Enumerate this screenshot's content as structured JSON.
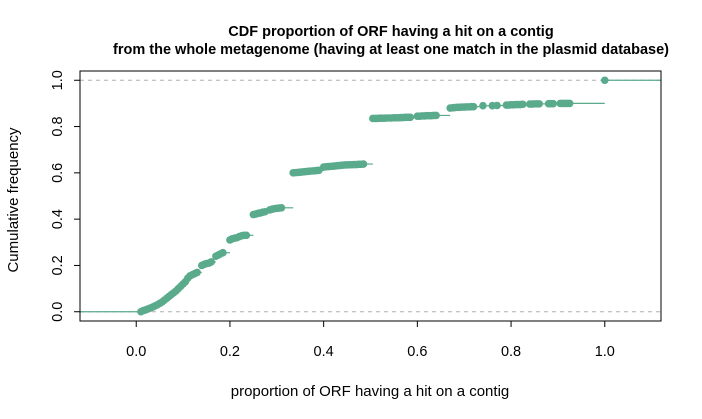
{
  "chart_data": {
    "type": "scatter",
    "title": [
      "CDF proportion of ORF having a hit on a contig",
      "from the whole metagenome (having at least one match in the plasmid database)"
    ],
    "xlabel": "proportion of ORF having a hit on a contig",
    "ylabel": "Cumulative frequency",
    "xlim": [
      -0.12,
      1.12
    ],
    "ylim": [
      -0.04,
      1.04
    ],
    "xticks": [
      "0.0",
      "0.2",
      "0.4",
      "0.6",
      "0.8",
      "1.0"
    ],
    "yticks": [
      "0.0",
      "0.2",
      "0.4",
      "0.6",
      "0.8",
      "1.0"
    ],
    "reference_lines": [
      0,
      1
    ],
    "grid": false,
    "color": "#5aaa8c",
    "points": [
      [
        0.01,
        0.0
      ],
      [
        0.015,
        0.005
      ],
      [
        0.02,
        0.008
      ],
      [
        0.025,
        0.012
      ],
      [
        0.03,
        0.016
      ],
      [
        0.035,
        0.02
      ],
      [
        0.04,
        0.025
      ],
      [
        0.045,
        0.03
      ],
      [
        0.05,
        0.036
      ],
      [
        0.055,
        0.042
      ],
      [
        0.06,
        0.05
      ],
      [
        0.065,
        0.058
      ],
      [
        0.07,
        0.066
      ],
      [
        0.075,
        0.074
      ],
      [
        0.08,
        0.082
      ],
      [
        0.085,
        0.09
      ],
      [
        0.09,
        0.1
      ],
      [
        0.095,
        0.11
      ],
      [
        0.1,
        0.12
      ],
      [
        0.105,
        0.13
      ],
      [
        0.11,
        0.145
      ],
      [
        0.115,
        0.155
      ],
      [
        0.12,
        0.16
      ],
      [
        0.125,
        0.165
      ],
      [
        0.13,
        0.17
      ],
      [
        0.14,
        0.2
      ],
      [
        0.145,
        0.205
      ],
      [
        0.15,
        0.208
      ],
      [
        0.155,
        0.21
      ],
      [
        0.16,
        0.215
      ],
      [
        0.17,
        0.24
      ],
      [
        0.175,
        0.245
      ],
      [
        0.18,
        0.25
      ],
      [
        0.185,
        0.255
      ],
      [
        0.2,
        0.31
      ],
      [
        0.205,
        0.315
      ],
      [
        0.21,
        0.318
      ],
      [
        0.215,
        0.32
      ],
      [
        0.22,
        0.325
      ],
      [
        0.225,
        0.328
      ],
      [
        0.23,
        0.33
      ],
      [
        0.235,
        0.33
      ],
      [
        0.25,
        0.42
      ],
      [
        0.255,
        0.422
      ],
      [
        0.26,
        0.425
      ],
      [
        0.265,
        0.427
      ],
      [
        0.27,
        0.43
      ],
      [
        0.275,
        0.432
      ],
      [
        0.285,
        0.44
      ],
      [
        0.29,
        0.443
      ],
      [
        0.295,
        0.445
      ],
      [
        0.3,
        0.447
      ],
      [
        0.305,
        0.448
      ],
      [
        0.31,
        0.449
      ],
      [
        0.335,
        0.6
      ],
      [
        0.34,
        0.601
      ],
      [
        0.345,
        0.602
      ],
      [
        0.35,
        0.603
      ],
      [
        0.355,
        0.604
      ],
      [
        0.36,
        0.605
      ],
      [
        0.365,
        0.606
      ],
      [
        0.37,
        0.607
      ],
      [
        0.375,
        0.608
      ],
      [
        0.38,
        0.609
      ],
      [
        0.385,
        0.61
      ],
      [
        0.39,
        0.611
      ],
      [
        0.4,
        0.625
      ],
      [
        0.405,
        0.626
      ],
      [
        0.41,
        0.627
      ],
      [
        0.415,
        0.628
      ],
      [
        0.42,
        0.629
      ],
      [
        0.425,
        0.63
      ],
      [
        0.43,
        0.631
      ],
      [
        0.435,
        0.632
      ],
      [
        0.44,
        0.633
      ],
      [
        0.445,
        0.634
      ],
      [
        0.45,
        0.634
      ],
      [
        0.455,
        0.635
      ],
      [
        0.46,
        0.635
      ],
      [
        0.465,
        0.636
      ],
      [
        0.47,
        0.636
      ],
      [
        0.475,
        0.637
      ],
      [
        0.48,
        0.637
      ],
      [
        0.485,
        0.638
      ],
      [
        0.505,
        0.835
      ],
      [
        0.51,
        0.835
      ],
      [
        0.515,
        0.835
      ],
      [
        0.52,
        0.836
      ],
      [
        0.525,
        0.836
      ],
      [
        0.53,
        0.836
      ],
      [
        0.535,
        0.837
      ],
      [
        0.54,
        0.837
      ],
      [
        0.545,
        0.837
      ],
      [
        0.55,
        0.838
      ],
      [
        0.555,
        0.838
      ],
      [
        0.56,
        0.838
      ],
      [
        0.565,
        0.839
      ],
      [
        0.57,
        0.839
      ],
      [
        0.575,
        0.84
      ],
      [
        0.58,
        0.84
      ],
      [
        0.585,
        0.84
      ],
      [
        0.6,
        0.845
      ],
      [
        0.605,
        0.845
      ],
      [
        0.61,
        0.846
      ],
      [
        0.615,
        0.846
      ],
      [
        0.62,
        0.847
      ],
      [
        0.625,
        0.847
      ],
      [
        0.63,
        0.847
      ],
      [
        0.635,
        0.848
      ],
      [
        0.64,
        0.848
      ],
      [
        0.67,
        0.88
      ],
      [
        0.675,
        0.881
      ],
      [
        0.68,
        0.882
      ],
      [
        0.685,
        0.883
      ],
      [
        0.69,
        0.883
      ],
      [
        0.695,
        0.884
      ],
      [
        0.7,
        0.884
      ],
      [
        0.705,
        0.885
      ],
      [
        0.71,
        0.885
      ],
      [
        0.715,
        0.886
      ],
      [
        0.72,
        0.886
      ],
      [
        0.74,
        0.89
      ],
      [
        0.76,
        0.89
      ],
      [
        0.77,
        0.891
      ],
      [
        0.79,
        0.893
      ],
      [
        0.795,
        0.893
      ],
      [
        0.8,
        0.894
      ],
      [
        0.805,
        0.894
      ],
      [
        0.81,
        0.895
      ],
      [
        0.815,
        0.895
      ],
      [
        0.82,
        0.895
      ],
      [
        0.825,
        0.896
      ],
      [
        0.84,
        0.897
      ],
      [
        0.845,
        0.897
      ],
      [
        0.85,
        0.898
      ],
      [
        0.855,
        0.898
      ],
      [
        0.86,
        0.898
      ],
      [
        0.88,
        0.899
      ],
      [
        0.885,
        0.899
      ],
      [
        0.89,
        0.899
      ],
      [
        0.905,
        0.9
      ],
      [
        0.91,
        0.9
      ],
      [
        0.915,
        0.9
      ],
      [
        0.92,
        0.9
      ],
      [
        0.925,
        0.9
      ],
      [
        1.0,
        1.0
      ]
    ]
  }
}
